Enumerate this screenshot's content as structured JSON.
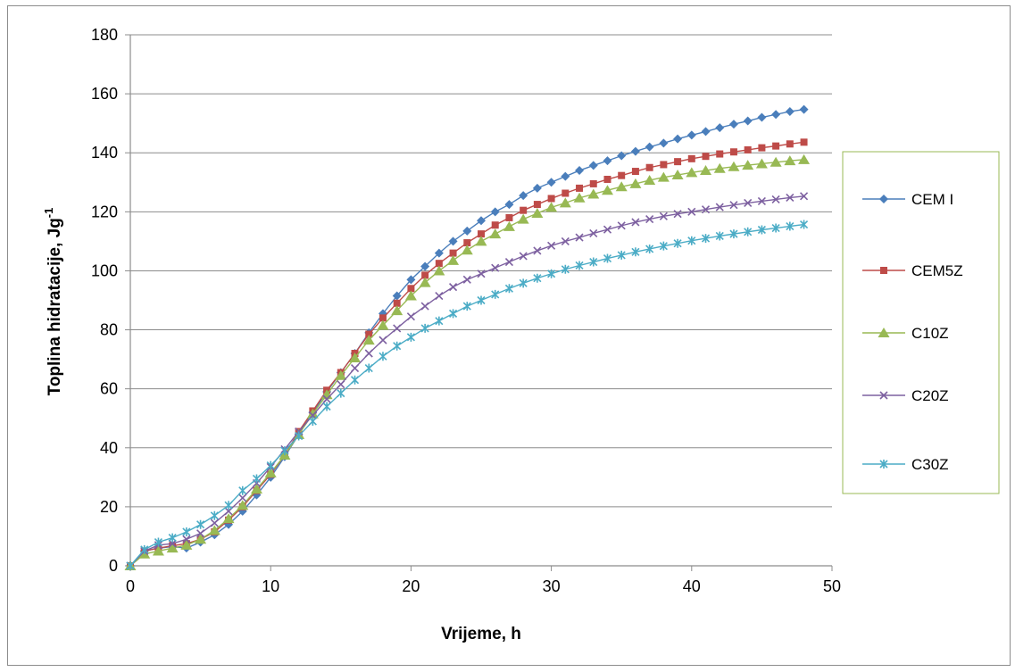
{
  "chart_data": {
    "type": "line",
    "title": "",
    "xlabel": "Vrijeme, h",
    "ylabel_main": "Toplina hidratacije, Jg",
    "ylabel_sup": "-1",
    "xlim": [
      0,
      50
    ],
    "ylim": [
      0,
      180
    ],
    "xticks": [
      0,
      10,
      20,
      30,
      40,
      50
    ],
    "yticks": [
      0,
      20,
      40,
      60,
      80,
      100,
      120,
      140,
      160,
      180
    ],
    "grid": "horizontal",
    "legend_position": "right",
    "x": [
      0,
      1,
      2,
      3,
      4,
      5,
      6,
      7,
      8,
      9,
      10,
      11,
      12,
      13,
      14,
      15,
      16,
      17,
      18,
      19,
      20,
      21,
      22,
      23,
      24,
      25,
      26,
      27,
      28,
      29,
      30,
      31,
      32,
      33,
      34,
      35,
      36,
      37,
      38,
      39,
      40,
      41,
      42,
      43,
      44,
      45,
      46,
      47,
      48
    ],
    "series": [
      {
        "name": "CEM I",
        "color": "#4a7ebb",
        "marker": "diamond",
        "values": [
          0,
          5,
          6,
          6.5,
          6,
          8,
          10.5,
          14,
          18.5,
          24,
          30,
          37,
          44.5,
          52,
          59,
          65.5,
          72,
          79,
          85.5,
          91.5,
          97,
          101.5,
          106,
          110,
          113.5,
          117,
          120,
          122.5,
          125.5,
          128,
          130,
          132,
          134,
          135.7,
          137.3,
          139,
          140.5,
          142,
          143.3,
          144.7,
          146,
          147.2,
          148.5,
          149.7,
          150.8,
          152,
          153,
          154,
          154.7
        ]
      },
      {
        "name": "CEM5Z",
        "color": "#be4b48",
        "marker": "square",
        "values": [
          0,
          5,
          6,
          6.8,
          7.5,
          9,
          11.5,
          15.5,
          20,
          25.5,
          31,
          37.5,
          45.5,
          52.5,
          59.5,
          65.5,
          72,
          78.5,
          84,
          89,
          94,
          98.5,
          102.5,
          106,
          109.5,
          112.5,
          115.5,
          118,
          120.5,
          122.5,
          124.5,
          126.3,
          128,
          129.5,
          131,
          132.3,
          133.7,
          135,
          136,
          137,
          138,
          138.8,
          139.6,
          140.3,
          141,
          141.7,
          142.3,
          143,
          143.6
        ]
      },
      {
        "name": "C10Z",
        "color": "#98b954",
        "marker": "triangle",
        "values": [
          0,
          4,
          5,
          6,
          7,
          9,
          12,
          16,
          20.5,
          26,
          31.5,
          37.5,
          44.5,
          51.5,
          58,
          64.5,
          70.5,
          76.5,
          81.5,
          86.5,
          91.5,
          96,
          100,
          103.5,
          107,
          110,
          112.5,
          115,
          117.5,
          119.5,
          121.5,
          123,
          124.7,
          126,
          127.3,
          128.5,
          129.5,
          130.7,
          131.7,
          132.5,
          133.3,
          134,
          134.7,
          135.3,
          135.8,
          136.3,
          136.8,
          137.3,
          137.7
        ]
      },
      {
        "name": "C20Z",
        "color": "#7d60a0",
        "marker": "x",
        "values": [
          0,
          5,
          7,
          7.5,
          9,
          11,
          14.5,
          18.5,
          23,
          28,
          33.5,
          39.5,
          45.5,
          51,
          56.5,
          61.5,
          67,
          72,
          76.5,
          80.5,
          84.5,
          88,
          91.5,
          94.5,
          97,
          99,
          101,
          103,
          105,
          106.8,
          108.5,
          110,
          111.3,
          112.7,
          114,
          115.3,
          116.5,
          117.5,
          118.5,
          119.3,
          120,
          120.8,
          121.6,
          122.3,
          123,
          123.6,
          124.2,
          124.8,
          125.3
        ]
      },
      {
        "name": "C30Z",
        "color": "#4bacc6",
        "marker": "star",
        "values": [
          0,
          5.5,
          8,
          9.5,
          11.5,
          14,
          17,
          20.5,
          25.5,
          29.5,
          34,
          39,
          44,
          49,
          54,
          58.5,
          63,
          67,
          71,
          74.5,
          77.5,
          80.5,
          83,
          85.5,
          88,
          90,
          92,
          94,
          95.8,
          97.5,
          99,
          100.5,
          101.8,
          103,
          104.2,
          105.3,
          106.4,
          107.4,
          108.4,
          109.3,
          110.2,
          111,
          111.8,
          112.5,
          113.2,
          113.9,
          114.5,
          115.1,
          115.7
        ]
      }
    ]
  }
}
